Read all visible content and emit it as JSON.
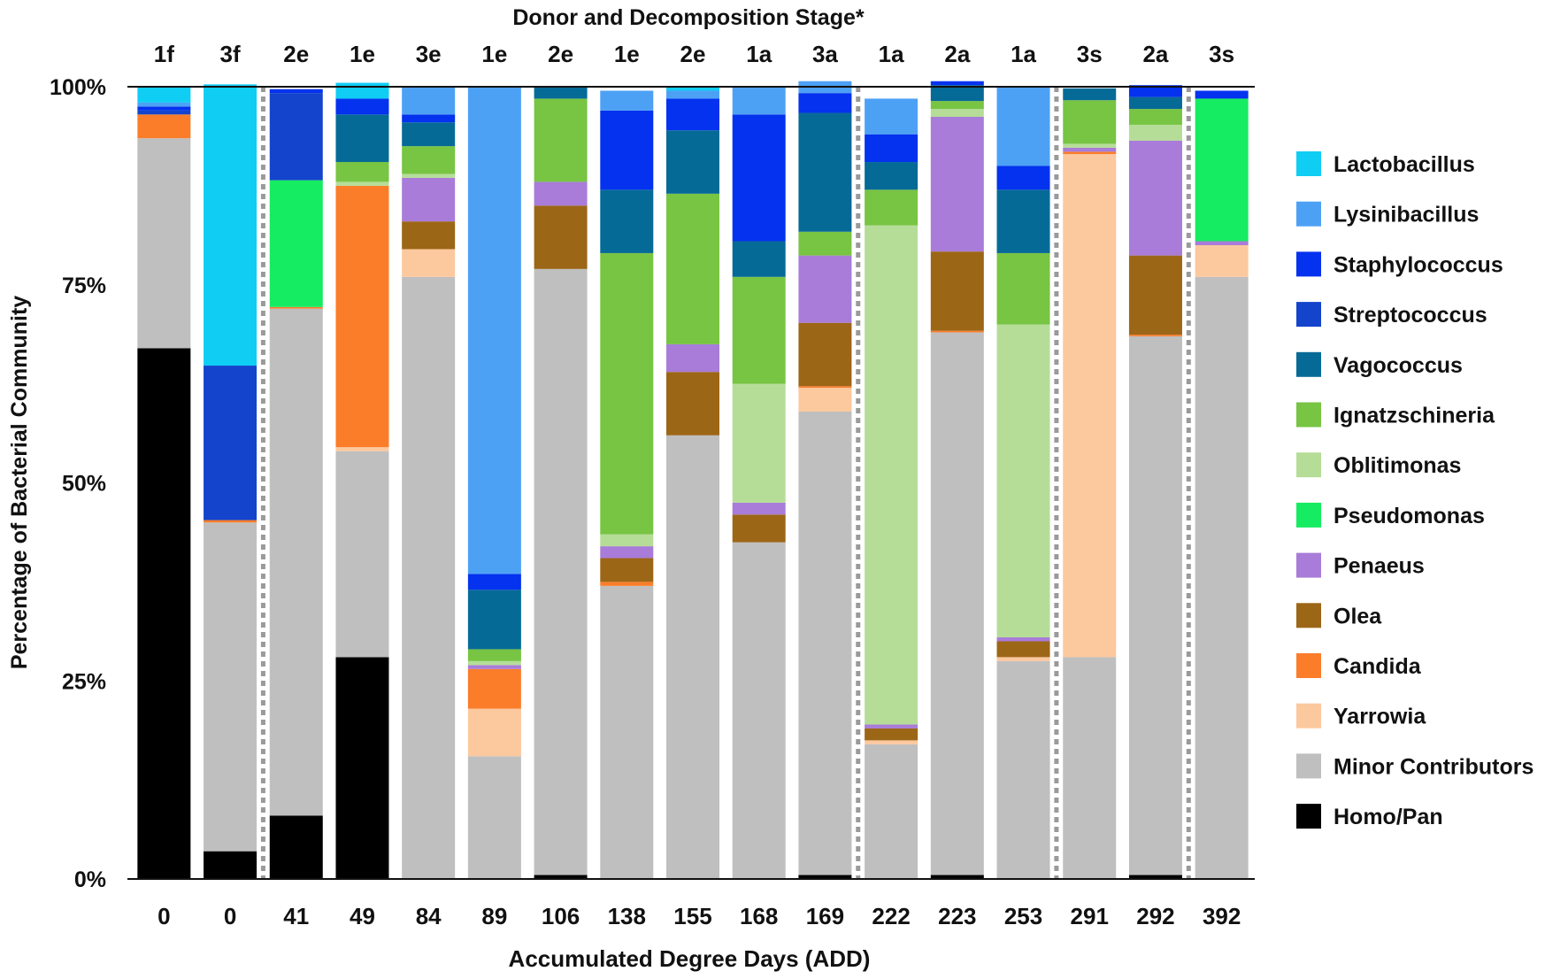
{
  "chart_data": {
    "type": "bar",
    "stacked": true,
    "title": "Donor and Decomposition Stage*",
    "xlabel": "Accumulated Degree Days (ADD)",
    "ylabel": "Percentage of Bacterial Community",
    "ylim": [
      0,
      100
    ],
    "yticks": [
      "0%",
      "25%",
      "50%",
      "75%",
      "100%"
    ],
    "stage_labels": [
      "1f",
      "3f",
      "2e",
      "1e",
      "3e",
      "1e",
      "2e",
      "1e",
      "2e",
      "1a",
      "3a",
      "1a",
      "2a",
      "1a",
      "3s",
      "2a",
      "3s"
    ],
    "categories": [
      "0",
      "0",
      "41",
      "49",
      "84",
      "89",
      "106",
      "138",
      "155",
      "168",
      "169",
      "222",
      "223",
      "253",
      "291",
      "292",
      "392"
    ],
    "stage_dividers_after_index": [
      1,
      10,
      13,
      15
    ],
    "legend_position": "right",
    "series": [
      {
        "name": "Homo/Pan",
        "color": "#000000",
        "values": [
          67,
          3.5,
          8,
          28,
          0,
          0,
          0.5,
          0,
          0,
          0,
          0.5,
          0,
          0.5,
          0,
          0,
          0.5,
          0
        ]
      },
      {
        "name": "Minor Contributors",
        "color": "#bfbfbf",
        "values": [
          26.5,
          41.5,
          64,
          26,
          76,
          15.5,
          76.5,
          37,
          56,
          42.5,
          58.5,
          17,
          68.5,
          27.5,
          28,
          68,
          76
        ]
      },
      {
        "name": "Yarrowia",
        "color": "#fcc89e",
        "values": [
          0,
          0,
          0,
          0.5,
          3.5,
          6,
          0,
          0,
          0,
          0,
          3,
          0.5,
          0,
          0.5,
          63.5,
          0,
          4
        ]
      },
      {
        "name": "Candida",
        "color": "#fb7d2a",
        "values": [
          3,
          0.3,
          0.2,
          33,
          0,
          5,
          0,
          0.5,
          0,
          0,
          0.2,
          0,
          0.2,
          0,
          0.3,
          0.2,
          0
        ]
      },
      {
        "name": "Olea",
        "color": "#9c6617",
        "values": [
          0,
          0,
          0,
          0,
          3.5,
          0,
          8,
          3,
          8,
          3.5,
          8,
          1.5,
          10,
          2,
          0,
          10,
          0
        ]
      },
      {
        "name": "Penaeus",
        "color": "#a87cd8",
        "values": [
          0,
          0,
          0,
          0,
          5.5,
          0.5,
          3,
          1.5,
          3.5,
          1.5,
          8.5,
          0.5,
          17,
          0.5,
          0.5,
          14.5,
          0.5
        ]
      },
      {
        "name": "Pseudomonas",
        "color": "#16ec61",
        "values": [
          0,
          0,
          16,
          0,
          0,
          0,
          0,
          0,
          0,
          0,
          0,
          0,
          0,
          0,
          0,
          0,
          18
        ]
      },
      {
        "name": "Oblitimonas",
        "color": "#b5dd98",
        "values": [
          0,
          0,
          0,
          0.5,
          0.5,
          0.5,
          0,
          1.5,
          0,
          15,
          0,
          63,
          1,
          39.5,
          0.5,
          2,
          0
        ]
      },
      {
        "name": "Ignatzschineria",
        "color": "#78c443",
        "values": [
          0,
          0,
          0,
          2.5,
          3.5,
          1.5,
          10.5,
          35.5,
          19,
          13.5,
          3,
          4.5,
          1,
          9,
          5.5,
          2,
          0
        ]
      },
      {
        "name": "Vagococcus",
        "color": "#066a97",
        "values": [
          0,
          0,
          0,
          6,
          3,
          7.5,
          1.5,
          8,
          8,
          4.5,
          15,
          3.5,
          2,
          8,
          1.5,
          1.5,
          0
        ]
      },
      {
        "name": "Streptococcus",
        "color": "#1444cc",
        "values": [
          0.5,
          19.5,
          11,
          0,
          0,
          0,
          0,
          0,
          0,
          0,
          0,
          0,
          0,
          0,
          0,
          0,
          0
        ]
      },
      {
        "name": "Staphylococcus",
        "color": "#0432ee",
        "values": [
          0.5,
          0,
          0.5,
          2,
          1,
          2,
          0,
          10,
          4,
          16,
          2.5,
          3.5,
          0.5,
          3,
          0,
          1.5,
          1
        ]
      },
      {
        "name": "Lysinibacillus",
        "color": "#4da1f5",
        "values": [
          0.5,
          0,
          0,
          0,
          3.5,
          61.5,
          0,
          2.5,
          1,
          3.5,
          1.5,
          4.5,
          0,
          10,
          0,
          0,
          0
        ]
      },
      {
        "name": "Lactobacillus",
        "color": "#10cdf4",
        "values": [
          2,
          35.5,
          0,
          2,
          0,
          0,
          0,
          0,
          0.5,
          0,
          0,
          0,
          0,
          0,
          0,
          0,
          0
        ]
      }
    ],
    "legend_order": [
      "Lactobacillus",
      "Lysinibacillus",
      "Staphylococcus",
      "Streptococcus",
      "Vagococcus",
      "Ignatzschineria",
      "Oblitimonas",
      "Pseudomonas",
      "Penaeus",
      "Olea",
      "Candida",
      "Yarrowia",
      "Minor Contributors",
      "Homo/Pan"
    ]
  }
}
